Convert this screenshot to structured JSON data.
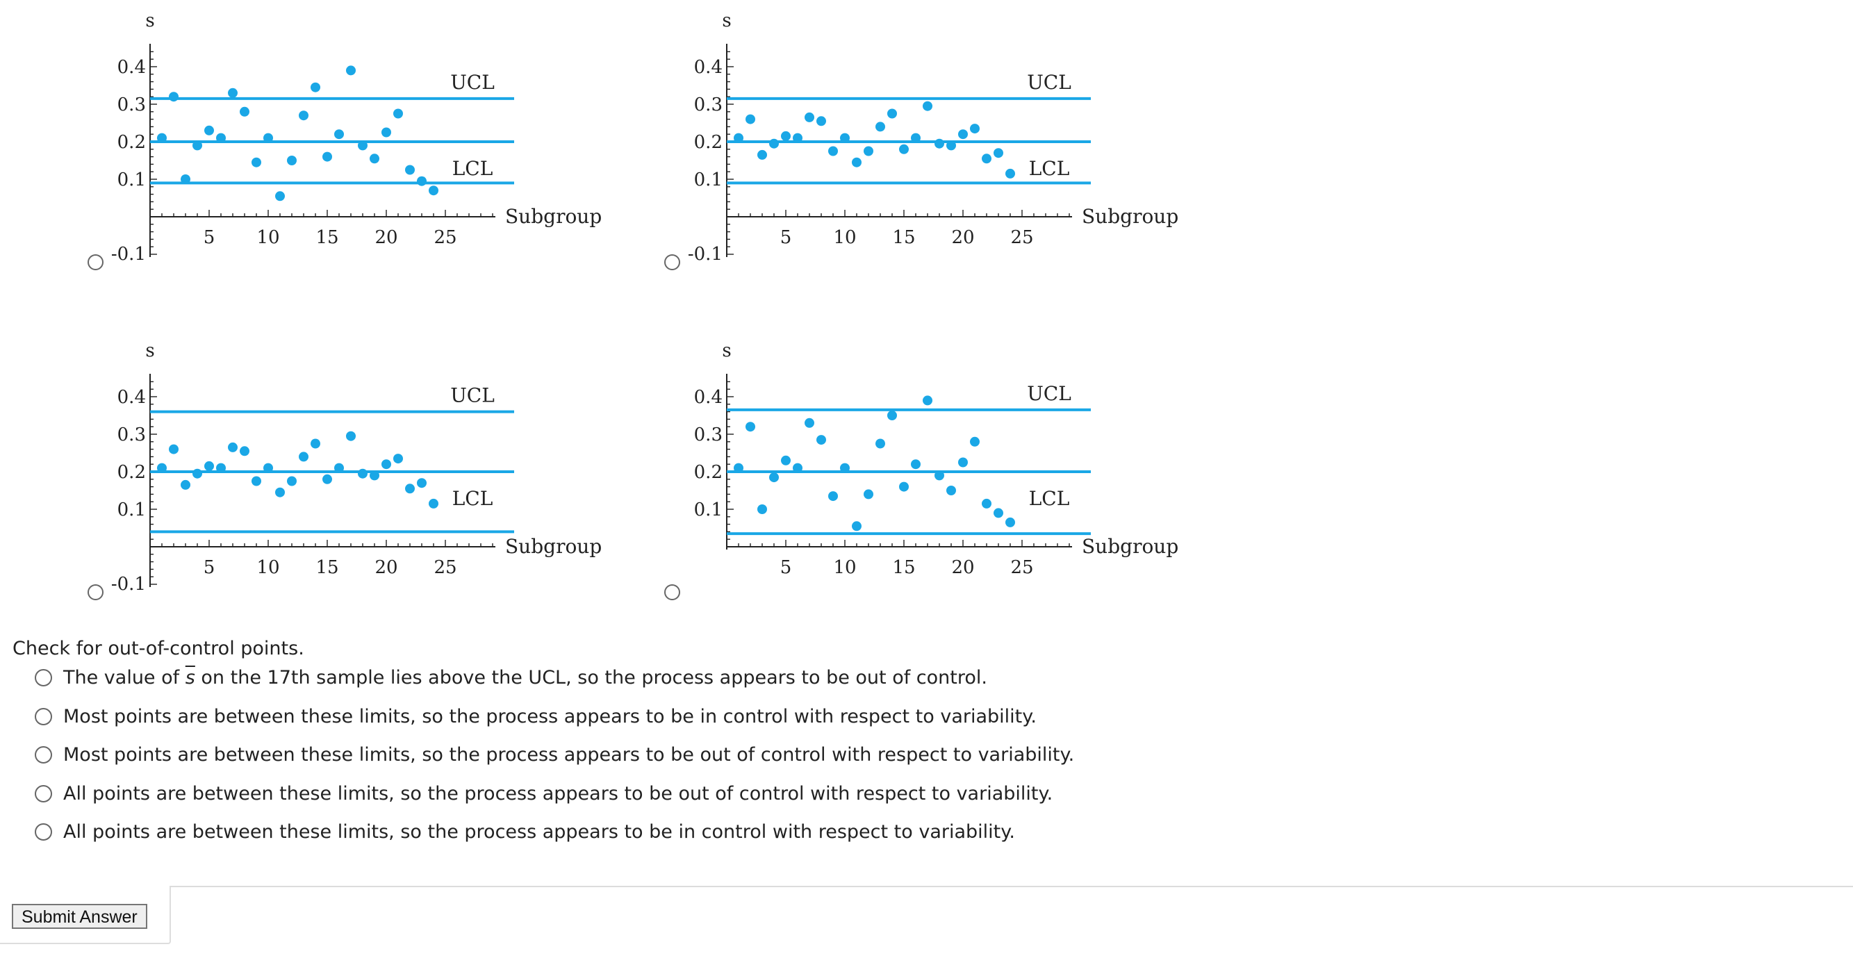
{
  "charts": [
    {
      "option_id": "A",
      "chart_data": {
        "type": "scatter",
        "ylabel": "s",
        "xlabel": "Subgroup",
        "x": [
          1,
          2,
          3,
          4,
          5,
          6,
          7,
          8,
          9,
          10,
          11,
          12,
          13,
          14,
          15,
          16,
          17,
          18,
          19,
          20,
          21,
          22,
          23,
          24
        ],
        "values": [
          0.21,
          0.32,
          0.1,
          0.19,
          0.23,
          0.21,
          0.33,
          0.28,
          0.145,
          0.21,
          0.055,
          0.15,
          0.27,
          0.345,
          0.16,
          0.22,
          0.39,
          0.19,
          0.155,
          0.225,
          0.275,
          0.125,
          0.095,
          0.07
        ],
        "ucl": 0.315,
        "center": 0.2,
        "lcl": 0.09,
        "ucl_label": "UCL",
        "lcl_label": "LCL",
        "xlim": [
          0,
          29
        ],
        "ylim": [
          -0.1,
          0.45
        ],
        "xticks": [
          5,
          10,
          15,
          20,
          25
        ],
        "yticks": [
          0.1,
          0.2,
          0.3,
          0.4
        ],
        "ytick_labels": [
          "0.1",
          "0.2",
          "0.3",
          "0.4"
        ],
        "ybottom_label": "-0.1",
        "x_axis_at": 0,
        "show_bottom_label": true
      }
    },
    {
      "option_id": "B",
      "chart_data": {
        "type": "scatter",
        "ylabel": "s",
        "xlabel": "Subgroup",
        "x": [
          1,
          2,
          3,
          4,
          5,
          6,
          7,
          8,
          9,
          10,
          11,
          12,
          13,
          14,
          15,
          16,
          17,
          18,
          19,
          20,
          21,
          22,
          23,
          24
        ],
        "values": [
          0.21,
          0.26,
          0.165,
          0.195,
          0.215,
          0.21,
          0.265,
          0.255,
          0.175,
          0.21,
          0.145,
          0.175,
          0.24,
          0.275,
          0.18,
          0.21,
          0.295,
          0.195,
          0.19,
          0.22,
          0.235,
          0.155,
          0.17,
          0.115
        ],
        "ucl": 0.315,
        "center": 0.2,
        "lcl": 0.09,
        "ucl_label": "UCL",
        "lcl_label": "LCL",
        "xlim": [
          0,
          29
        ],
        "ylim": [
          -0.1,
          0.45
        ],
        "xticks": [
          5,
          10,
          15,
          20,
          25
        ],
        "yticks": [
          0.1,
          0.2,
          0.3,
          0.4
        ],
        "ytick_labels": [
          "0.1",
          "0.2",
          "0.3",
          "0.4"
        ],
        "ybottom_label": "-0.1",
        "x_axis_at": 0,
        "show_bottom_label": true
      }
    },
    {
      "option_id": "C",
      "chart_data": {
        "type": "scatter",
        "ylabel": "s",
        "xlabel": "Subgroup",
        "x": [
          1,
          2,
          3,
          4,
          5,
          6,
          7,
          8,
          9,
          10,
          11,
          12,
          13,
          14,
          15,
          16,
          17,
          18,
          19,
          20,
          21,
          22,
          23,
          24
        ],
        "values": [
          0.21,
          0.26,
          0.165,
          0.195,
          0.215,
          0.21,
          0.265,
          0.255,
          0.175,
          0.21,
          0.145,
          0.175,
          0.24,
          0.275,
          0.18,
          0.21,
          0.295,
          0.195,
          0.19,
          0.22,
          0.235,
          0.155,
          0.17,
          0.115
        ],
        "ucl": 0.36,
        "center": 0.2,
        "lcl": 0.04,
        "ucl_label": "UCL",
        "lcl_label": "LCL",
        "xlim": [
          0,
          29
        ],
        "ylim": [
          -0.1,
          0.45
        ],
        "xticks": [
          5,
          10,
          15,
          20,
          25
        ],
        "yticks": [
          0.1,
          0.2,
          0.3,
          0.4
        ],
        "ytick_labels": [
          "0.1",
          "0.2",
          "0.3",
          "0.4"
        ],
        "ybottom_label": "-0.1",
        "x_axis_at": 0,
        "show_bottom_label": true
      }
    },
    {
      "option_id": "D",
      "chart_data": {
        "type": "scatter",
        "ylabel": "s",
        "xlabel": "Subgroup",
        "x": [
          1,
          2,
          3,
          4,
          5,
          6,
          7,
          8,
          9,
          10,
          11,
          12,
          13,
          14,
          15,
          16,
          17,
          18,
          19,
          20,
          21,
          22,
          23,
          24
        ],
        "values": [
          0.21,
          0.32,
          0.1,
          0.185,
          0.23,
          0.21,
          0.33,
          0.285,
          0.135,
          0.21,
          0.055,
          0.14,
          0.275,
          0.35,
          0.16,
          0.22,
          0.39,
          0.19,
          0.15,
          0.225,
          0.28,
          0.115,
          0.09,
          0.065
        ],
        "ucl": 0.365,
        "center": 0.2,
        "lcl": 0.035,
        "ucl_label": "UCL",
        "lcl_label": "LCL",
        "xlim": [
          0,
          29
        ],
        "ylim": [
          0,
          0.45
        ],
        "xticks": [
          5,
          10,
          15,
          20,
          25
        ],
        "yticks": [
          0.1,
          0.2,
          0.3,
          0.4
        ],
        "ytick_labels": [
          "0.1",
          "0.2",
          "0.3",
          "0.4"
        ],
        "ybottom_label": "",
        "x_axis_at": 0,
        "show_bottom_label": false
      }
    }
  ],
  "question": {
    "prompt": "Check for out-of-control points.",
    "options": [
      {
        "pre": "The value of ",
        "sym": "s",
        "post": " on the 17th sample lies above the UCL, so the process appears to be out of control."
      },
      {
        "pre": "Most points are between these limits, so the process appears to be in control with respect to variability.",
        "sym": "",
        "post": ""
      },
      {
        "pre": "Most points are between these limits, so the process appears to be out of control with respect to variability.",
        "sym": "",
        "post": ""
      },
      {
        "pre": "All points are between these limits, so the process appears to be out of control with respect to variability.",
        "sym": "",
        "post": ""
      },
      {
        "pre": "All points are between these limits, so the process appears to be in control with respect to variability.",
        "sym": "",
        "post": ""
      }
    ]
  },
  "submit": {
    "label": "Submit Answer"
  },
  "colors": {
    "point": "#1aa7e6",
    "line": "#1aa7e6",
    "axis": "#222222"
  }
}
